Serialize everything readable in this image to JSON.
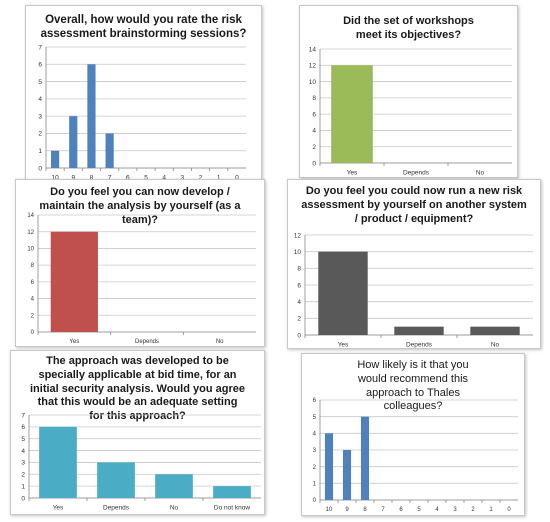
{
  "chart_data": [
    {
      "type": "bar",
      "title": "Overall, how would you rate the risk assessment brainstorming sessions?",
      "categories": [
        "10",
        "9",
        "8",
        "7",
        "6",
        "5",
        "4",
        "3",
        "2",
        "1",
        "0"
      ],
      "values": [
        1,
        3,
        6,
        2,
        0,
        0,
        0,
        0,
        0,
        0,
        0
      ],
      "ylim": [
        0,
        7
      ],
      "yticks": [
        "0",
        "1",
        "2",
        "3",
        "4",
        "5",
        "6",
        "7"
      ],
      "grid": true,
      "color": "#4f81bd"
    },
    {
      "type": "bar",
      "title": "Did the set of workshops meet its objectives?",
      "categories": [
        "Yes",
        "Depends",
        "No"
      ],
      "values": [
        12,
        0,
        0
      ],
      "ylim": [
        0,
        14
      ],
      "yticks": [
        "0",
        "2",
        "4",
        "6",
        "8",
        "10",
        "12",
        "14"
      ],
      "grid": true,
      "color": "#9bbb59"
    },
    {
      "type": "bar",
      "title": "Do you feel you can now develop / maintain the analysis by yourself (as a team)?",
      "categories": [
        "Yes",
        "Depends",
        "No"
      ],
      "values": [
        12,
        0,
        0
      ],
      "ylim": [
        0,
        14
      ],
      "yticks": [
        "0",
        "2",
        "4",
        "6",
        "8",
        "10",
        "12",
        "14"
      ],
      "grid": true,
      "color": "#c0504d"
    },
    {
      "type": "bar",
      "title": "Do you feel you could now run a new risk assessment by yourself on another system / product / equipment?",
      "categories": [
        "Yes",
        "Depends",
        "No"
      ],
      "values": [
        10,
        1,
        1
      ],
      "ylim": [
        0,
        12
      ],
      "yticks": [
        "0",
        "2",
        "4",
        "6",
        "8",
        "10",
        "12"
      ],
      "grid": true,
      "color": "#595959"
    },
    {
      "type": "bar",
      "title": "The approach was developed to be specially applicable at bid time, for an initial security analysis. Would you agree that this would be an adequate setting for this approach?",
      "categories": [
        "Yes",
        "Depends",
        "No",
        "Do not know"
      ],
      "values": [
        6,
        3,
        2,
        1
      ],
      "ylim": [
        0,
        7
      ],
      "yticks": [
        "0",
        "1",
        "2",
        "3",
        "4",
        "5",
        "6",
        "7"
      ],
      "grid": true,
      "color": "#4bacc6"
    },
    {
      "type": "bar",
      "title": "How likely is it that you would recommend this approach to Thales colleagues?",
      "categories": [
        "10",
        "9",
        "8",
        "7",
        "6",
        "5",
        "4",
        "3",
        "2",
        "1",
        "0"
      ],
      "values": [
        4,
        3,
        5,
        0,
        0,
        0,
        0,
        0,
        0,
        0,
        0
      ],
      "ylim": [
        0,
        6
      ],
      "yticks": [
        "0",
        "1",
        "2",
        "3",
        "4",
        "5",
        "6"
      ],
      "grid": true,
      "color": "#4f81bd"
    }
  ]
}
